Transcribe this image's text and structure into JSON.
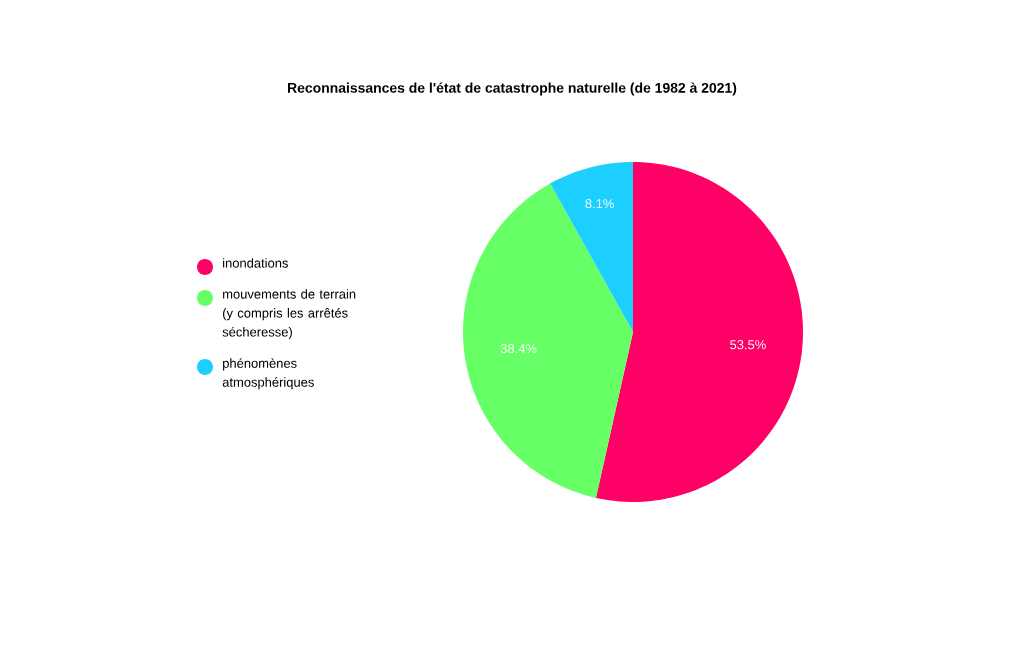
{
  "chart_data": {
    "type": "pie",
    "title": "Reconnaissances de l'état de catastrophe naturelle (de 1982 à 2021)",
    "categories": [
      "inondations",
      "mouvements de terrain (y compris les arrêtés sécheresse)",
      "phénomènes atmosphériques"
    ],
    "values": [
      53.5,
      38.4,
      8.1
    ],
    "colors": [
      "#ff0066",
      "#66ff66",
      "#1ccfff"
    ],
    "value_labels": [
      "53.5%",
      "38.4%",
      "8.1%"
    ],
    "legend": "left"
  }
}
